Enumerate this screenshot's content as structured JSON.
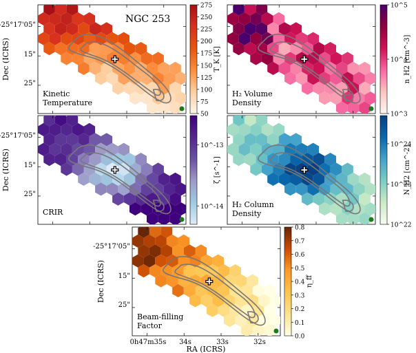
{
  "figure": {
    "source_name": "NGC 253",
    "marker_symbol": "+",
    "x_axis_label": "RA (ICRS)",
    "y_axis_label": "Dec (ICRS)",
    "x_ticks": [
      "0h47m35s",
      "34s",
      "33s",
      "32s"
    ],
    "y_ticks": [
      "-25°17'05\"",
      "15\"",
      "25\""
    ]
  },
  "chart_data": [
    {
      "id": "tk",
      "type": "heatmap",
      "title": "Kinetic Temperature",
      "title_lines": [
        "Kinetic",
        "Temperature"
      ],
      "colorbar_label": "T_K [K]",
      "scale": "linear",
      "range": [
        50,
        275
      ],
      "colorbar_ticks": [
        "50",
        "75",
        "100",
        "125",
        "150",
        "175",
        "200",
        "225",
        "250",
        "275"
      ],
      "colormap": [
        "#fff5eb",
        "#fdd0a2",
        "#fd8d3c",
        "#e6550d",
        "#d7301f",
        "#a50f15"
      ]
    },
    {
      "id": "nh2",
      "type": "heatmap",
      "title": "H2 Volume Density",
      "title_lines": [
        "H₂ Volume",
        "Density"
      ],
      "colorbar_label": "n_H2 [cm^-3]",
      "scale": "log",
      "range": [
        1000,
        100000
      ],
      "colorbar_ticks": [
        "10^3",
        "10^4",
        "10^5"
      ],
      "colormap": [
        "#fff7f3",
        "#fcc5c0",
        "#f768a1",
        "#ce1256",
        "#91003f",
        "#49006a"
      ]
    },
    {
      "id": "crir",
      "type": "heatmap",
      "title": "CRIR",
      "title_lines": [
        "CRIR"
      ],
      "colorbar_label": "ζ [s^-1]",
      "scale": "log",
      "range": [
        5e-15,
        3e-13
      ],
      "colorbar_ticks": [
        "10^-14",
        "10^-13"
      ],
      "colormap": [
        "#deebf7",
        "#9ecae1",
        "#9e9ac8",
        "#6a51a3",
        "#54278f",
        "#3f007d"
      ]
    },
    {
      "id": "nco",
      "type": "heatmap",
      "title": "H2 Column Density",
      "title_lines": [
        "H₂ Column",
        "Density"
      ],
      "colorbar_label": "N_H2 [cm^-2]",
      "scale": "log",
      "range": [
        1e+22,
        5e+24
      ],
      "colorbar_ticks": [
        "10^22",
        "10^23",
        "10^24"
      ],
      "colormap": [
        "#f7fcf0",
        "#ccebc5",
        "#7bccc4",
        "#43a2ca",
        "#0868ac",
        "#084081"
      ]
    },
    {
      "id": "eta",
      "type": "heatmap",
      "title": "Beam-filling Factor",
      "title_lines": [
        "Beam-filling",
        "Factor"
      ],
      "colorbar_label": "η_ff",
      "scale": "linear",
      "range": [
        0.0,
        0.8
      ],
      "colorbar_ticks": [
        "0.0",
        "0.1",
        "0.2",
        "0.3",
        "0.4",
        "0.5",
        "0.6",
        "0.7",
        "0.8"
      ],
      "colormap": [
        "#ffffe5",
        "#fee391",
        "#fec44f",
        "#fe9929",
        "#cc4c02",
        "#662506"
      ]
    }
  ]
}
